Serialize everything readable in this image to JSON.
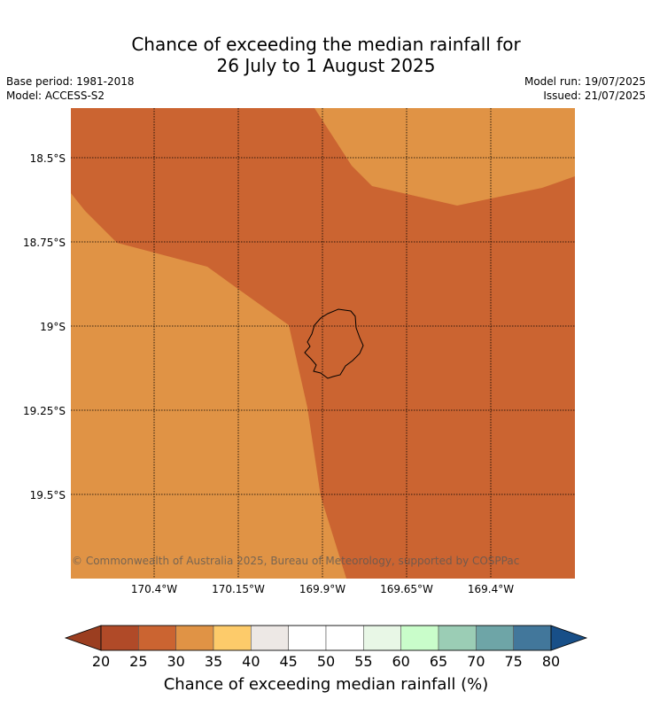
{
  "title": {
    "line1": "Chance of exceeding the median rainfall for",
    "line2": "26 July to 1 August 2025"
  },
  "meta_left": {
    "base_period": "Base period: 1981-2018",
    "model": "Model: ACCESS-S2"
  },
  "meta_right": {
    "model_run": "Model run: 19/07/2025",
    "issued": "Issued: 21/07/2025"
  },
  "map": {
    "copyright": "© Commonwealth of Australia 2025, Bureau of Meteorology, supported by COSPPac",
    "lat_labels": [
      "18.5°S",
      "18.75°S",
      "19°S",
      "19.25°S",
      "19.5°S"
    ],
    "lon_labels": [
      "170.4°W",
      "170.15°W",
      "169.9°W",
      "169.65°W",
      "169.4°W"
    ],
    "colors": {
      "band_25_30": "#cb6431",
      "band_30_35": "#e09345",
      "coastline": "#000000"
    }
  },
  "colorbar": {
    "label": "Chance of exceeding median rainfall (%)",
    "ticks": [
      "20",
      "25",
      "30",
      "35",
      "40",
      "45",
      "50",
      "55",
      "60",
      "65",
      "70",
      "75",
      "80"
    ],
    "colors": [
      "#b04a28",
      "#cb6431",
      "#e09345",
      "#fdcb6a",
      "#ede8e5",
      "#ffffff",
      "#ffffff",
      "#e8f7e6",
      "#c9fdca",
      "#9bcdb5",
      "#6ea5a7",
      "#42779b"
    ],
    "under_color": "#9b3e20",
    "over_color": "#184f88"
  }
}
